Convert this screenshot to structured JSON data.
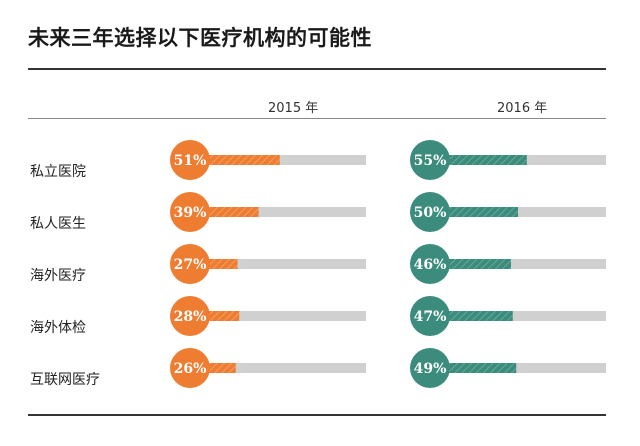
{
  "title": "未来三年选择以下医疗机构的可能性",
  "colors": {
    "orange": "#ee7d31",
    "teal": "#3b8c7c",
    "track": "#d0d0d0"
  },
  "chart_data": {
    "type": "bar",
    "orientation": "horizontal",
    "categories": [
      "私立医院",
      "私人医生",
      "海外医疗",
      "海外体检",
      "互联网医疗"
    ],
    "series": [
      {
        "name": "2015 年",
        "values": [
          51,
          39,
          27,
          28,
          26
        ],
        "value_labels": [
          "51%",
          "39%",
          "27%",
          "28%",
          "26%"
        ],
        "color": "#ee7d31"
      },
      {
        "name": "2016 年",
        "values": [
          55,
          50,
          46,
          47,
          49
        ],
        "value_labels": [
          "55%",
          "50%",
          "46%",
          "47%",
          "49%"
        ],
        "color": "#3b8c7c"
      }
    ],
    "xlim": [
      0,
      100
    ],
    "grid": false,
    "legend": "top"
  }
}
